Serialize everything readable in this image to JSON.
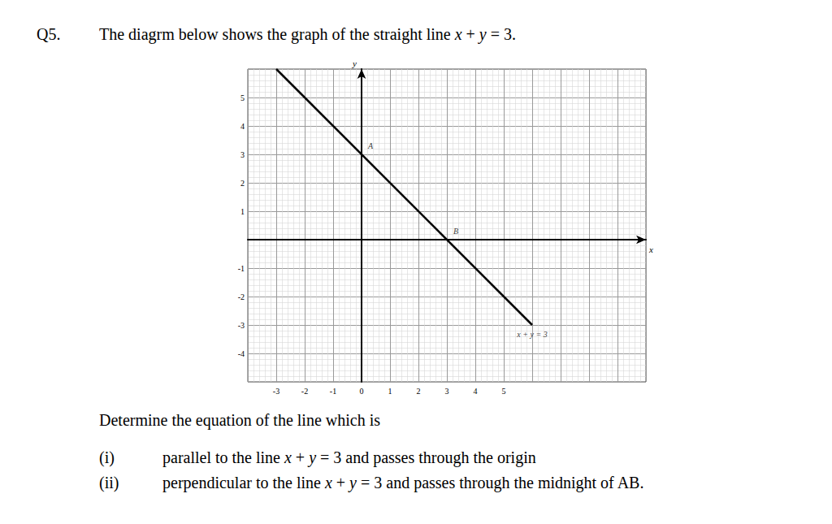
{
  "question_number": "Q5.",
  "question_text": "The diagrm below shows the graph of the straight line x + y = 3.",
  "chart_data": {
    "type": "line",
    "series": [
      {
        "name": "x + y = 3",
        "x": [
          -3,
          6
        ],
        "values": [
          6,
          -3
        ],
        "color": "#000000",
        "marker": "arrow"
      }
    ],
    "xlim": [
      -4,
      10
    ],
    "ylim": [
      -5,
      6
    ],
    "xticks": [
      -3,
      -2,
      -1,
      0,
      1,
      2,
      3,
      4,
      5
    ],
    "yticks": [
      -4,
      -3,
      -2,
      -1,
      1,
      2,
      3,
      4,
      5
    ],
    "x_label": "x",
    "y_label": "y",
    "grid": true,
    "annotations": [
      {
        "text": "A",
        "x": 0,
        "y": 3
      },
      {
        "text": "B",
        "x": 3,
        "y": 0
      }
    ]
  },
  "instruction": "Determine the equation of the line which is",
  "parts": [
    {
      "label": "(i)",
      "text": "parallel to the line x + y = 3 and passes through the origin"
    },
    {
      "label": "(ii)",
      "text": "perpendicular to the line x + y = 3 and passes through the midnight of AB."
    }
  ]
}
